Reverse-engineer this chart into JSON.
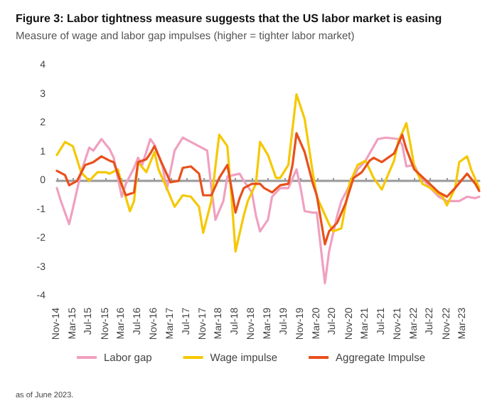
{
  "chart_data": {
    "type": "line",
    "title": "Figure 3: Labor tightness measure suggests that the US labor market is easing",
    "subtitle": "Measure of wage and labor gap impulses (higher = tighter labor market)",
    "annotations": [
      "as of June 2023."
    ],
    "xlim": [
      "2014-11",
      "2023-07"
    ],
    "xticks": [
      {
        "value": "2014-11",
        "label": "Nov-14"
      },
      {
        "value": "2015-03",
        "label": "Mar-15"
      },
      {
        "value": "2015-07",
        "label": "Jul-15"
      },
      {
        "value": "2015-11",
        "label": "Nov-15"
      },
      {
        "value": "2016-03",
        "label": "Mar-16"
      },
      {
        "value": "2016-07",
        "label": "Jul-16"
      },
      {
        "value": "2016-11",
        "label": "Nov-16"
      },
      {
        "value": "2017-03",
        "label": "Mar-17"
      },
      {
        "value": "2017-07",
        "label": "Jul-17"
      },
      {
        "value": "2017-11",
        "label": "Nov-17"
      },
      {
        "value": "2018-03",
        "label": "Mar-18"
      },
      {
        "value": "2018-07",
        "label": "Jul-18"
      },
      {
        "value": "2018-11",
        "label": "Nov-18"
      },
      {
        "value": "2019-03",
        "label": "Mar-19"
      },
      {
        "value": "2019-07",
        "label": "Jul-19"
      },
      {
        "value": "2019-11",
        "label": "Nov-19"
      },
      {
        "value": "2020-03",
        "label": "Mar-20"
      },
      {
        "value": "2020-07",
        "label": "Jul-20"
      },
      {
        "value": "2020-11",
        "label": "Nov-20"
      },
      {
        "value": "2021-03",
        "label": "Mar-21"
      },
      {
        "value": "2021-07",
        "label": "Jul-21"
      },
      {
        "value": "2021-11",
        "label": "Nov-21"
      },
      {
        "value": "2022-03",
        "label": "Mar-22"
      },
      {
        "value": "2022-07",
        "label": "Jul-22"
      },
      {
        "value": "2022-11",
        "label": "Nov-22"
      },
      {
        "value": "2023-03",
        "label": "Mar-23"
      }
    ],
    "ylim": [
      -4,
      4
    ],
    "yticks": [
      -4,
      -3,
      -2,
      -1,
      0,
      1,
      2,
      3,
      4
    ],
    "legend": "bottom",
    "marker": "none",
    "line_style": "solid",
    "series": [
      {
        "name": "Labor gap",
        "color": "#f0a0c0",
        "x": [
          "2014-11",
          "2014-12",
          "2015-02",
          "2015-03",
          "2015-05",
          "2015-07",
          "2015-08",
          "2015-10",
          "2015-12",
          "2016-01",
          "2016-03",
          "2016-04",
          "2016-06",
          "2016-07",
          "2016-08",
          "2016-10",
          "2016-11",
          "2017-01",
          "2017-02",
          "2017-04",
          "2017-06",
          "2017-08",
          "2017-10",
          "2017-12",
          "2018-01",
          "2018-02",
          "2018-04",
          "2018-05",
          "2018-08",
          "2018-09",
          "2018-11",
          "2018-12",
          "2019-01",
          "2019-03",
          "2019-04",
          "2019-06",
          "2019-08",
          "2019-10",
          "2019-11",
          "2019-12",
          "2020-02",
          "2020-03",
          "2020-05",
          "2020-06",
          "2020-08",
          "2020-09",
          "2020-12",
          "2021-01",
          "2021-03",
          "2021-06",
          "2021-08",
          "2021-11",
          "2021-12",
          "2022-01",
          "2022-03",
          "2022-04",
          "2022-07",
          "2022-09",
          "2022-11",
          "2023-02",
          "2023-04",
          "2023-06",
          "2023-07"
        ],
        "values": [
          -0.25,
          -0.7,
          -1.5,
          -0.95,
          0.3,
          1.15,
          1.05,
          1.45,
          1.1,
          0.8,
          -0.55,
          -0.1,
          0.45,
          0.8,
          0.55,
          1.45,
          1.25,
          0.5,
          -0.3,
          1.05,
          1.5,
          1.35,
          1.2,
          1.05,
          -0.25,
          -1.35,
          -0.7,
          0.15,
          0.25,
          0,
          -0.4,
          -1.2,
          -1.75,
          -1.35,
          -0.55,
          -0.25,
          -0.25,
          0.4,
          -0.25,
          -1.05,
          -1.1,
          -1.1,
          -3.55,
          -2.45,
          -1.2,
          -0.7,
          0.1,
          0.4,
          0.7,
          1.45,
          1.5,
          1.45,
          1.25,
          0.5,
          0.55,
          0.25,
          -0.25,
          -0.55,
          -0.7,
          -0.7,
          -0.55,
          -0.6,
          -0.55
        ]
      },
      {
        "name": "Wage impulse",
        "color": "#f5c800",
        "x": [
          "2014-11",
          "2015-01",
          "2015-03",
          "2015-05",
          "2015-07",
          "2015-09",
          "2015-11",
          "2015-12",
          "2016-02",
          "2016-03",
          "2016-05",
          "2016-06",
          "2016-07",
          "2016-09",
          "2016-11",
          "2016-12",
          "2017-02",
          "2017-04",
          "2017-06",
          "2017-08",
          "2017-10",
          "2017-11",
          "2018-01",
          "2018-03",
          "2018-05",
          "2018-06",
          "2018-07",
          "2018-09",
          "2018-10",
          "2018-12",
          "2019-01",
          "2019-03",
          "2019-05",
          "2019-06",
          "2019-08",
          "2019-09",
          "2019-10",
          "2019-12",
          "2020-02",
          "2020-03",
          "2020-06",
          "2020-07",
          "2020-09",
          "2020-11",
          "2021-01",
          "2021-03",
          "2021-05",
          "2021-07",
          "2021-10",
          "2021-11",
          "2022-01",
          "2022-02",
          "2022-03",
          "2022-05",
          "2022-07",
          "2022-10",
          "2022-11",
          "2023-01",
          "2023-02",
          "2023-04",
          "2023-05",
          "2023-07"
        ],
        "values": [
          0.9,
          1.35,
          1.2,
          0.3,
          0,
          0.3,
          0.3,
          0.25,
          0.4,
          -0.1,
          -1.05,
          -0.7,
          0.65,
          0.3,
          1.0,
          0.4,
          -0.25,
          -0.9,
          -0.5,
          -0.55,
          -0.9,
          -1.8,
          -0.7,
          1.6,
          1.2,
          -0.55,
          -2.45,
          -1.2,
          -0.7,
          -0.1,
          1.35,
          0.9,
          0.1,
          0.1,
          0.55,
          1.8,
          3.0,
          2.15,
          0.25,
          -0.55,
          -1.5,
          -1.75,
          -1.65,
          -0.1,
          0.55,
          0.7,
          0.1,
          -0.3,
          0.7,
          1.35,
          2.0,
          1.25,
          0.5,
          -0.1,
          -0.25,
          -0.55,
          -0.85,
          -0.25,
          0.65,
          0.85,
          0.4,
          -0.25
        ]
      },
      {
        "name": "Aggregate Impulse",
        "color": "#e8501c",
        "x": [
          "2014-11",
          "2015-01",
          "2015-02",
          "2015-04",
          "2015-06",
          "2015-08",
          "2015-10",
          "2015-12",
          "2016-01",
          "2016-03",
          "2016-04",
          "2016-06",
          "2016-07",
          "2016-09",
          "2016-10",
          "2016-11",
          "2017-01",
          "2017-03",
          "2017-05",
          "2017-06",
          "2017-08",
          "2017-10",
          "2017-11",
          "2018-01",
          "2018-03",
          "2018-05",
          "2018-06",
          "2018-07",
          "2018-08",
          "2018-09",
          "2018-11",
          "2019-01",
          "2019-02",
          "2019-04",
          "2019-06",
          "2019-08",
          "2019-09",
          "2019-10",
          "2019-12",
          "2020-02",
          "2020-03",
          "2020-05",
          "2020-06",
          "2020-08",
          "2020-10",
          "2020-12",
          "2021-02",
          "2021-04",
          "2021-05",
          "2021-07",
          "2021-10",
          "2021-12",
          "2022-01",
          "2022-03",
          "2022-06",
          "2022-09",
          "2022-11",
          "2023-01",
          "2023-04",
          "2023-06",
          "2023-07"
        ],
        "values": [
          0.35,
          0.2,
          -0.15,
          0,
          0.55,
          0.65,
          0.85,
          0.7,
          0.65,
          -0.15,
          -0.5,
          -0.4,
          0.65,
          0.75,
          0.95,
          1.2,
          0.55,
          -0.05,
          0,
          0.45,
          0.5,
          0.25,
          -0.5,
          -0.5,
          0.1,
          0.55,
          -0.25,
          -1.1,
          -0.6,
          -0.25,
          -0.1,
          -0.1,
          -0.25,
          -0.4,
          -0.15,
          -0.1,
          0.55,
          1.65,
          1.0,
          -0.1,
          -0.5,
          -2.2,
          -1.75,
          -1.45,
          -0.8,
          0.1,
          0.3,
          0.7,
          0.8,
          0.65,
          0.95,
          1.6,
          1.1,
          0.4,
          0,
          -0.4,
          -0.55,
          -0.25,
          0.25,
          -0.1,
          -0.35
        ]
      }
    ]
  }
}
